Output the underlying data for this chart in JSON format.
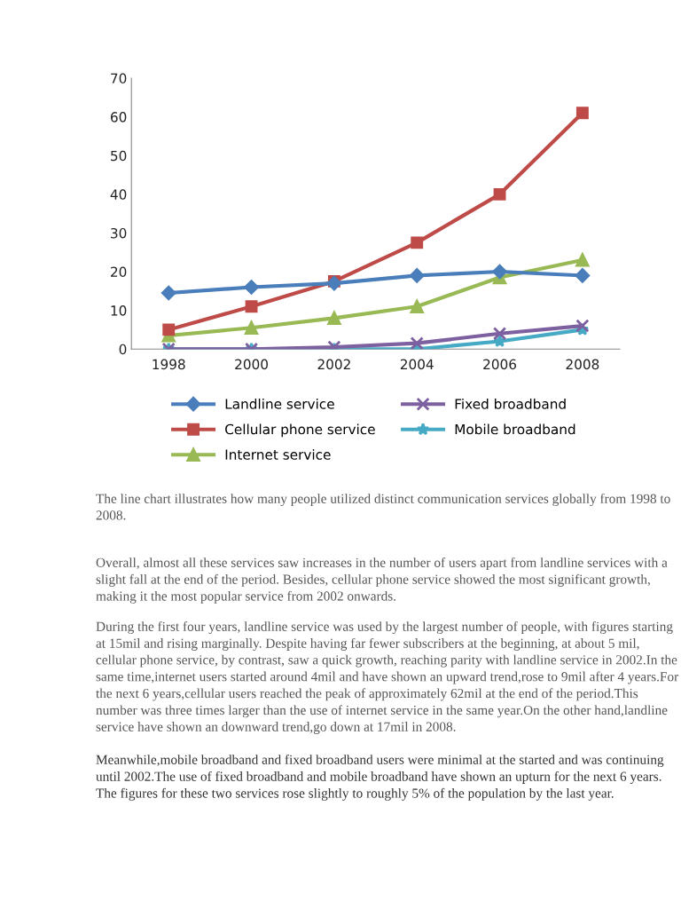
{
  "chart_data": {
    "type": "line",
    "categories": [
      "1998",
      "2000",
      "2002",
      "2004",
      "2006",
      "2008"
    ],
    "series": [
      {
        "name": "Landline service",
        "color": "#4a7ebb",
        "marker": "diamond",
        "values": [
          14.5,
          16,
          17,
          19,
          20,
          19
        ]
      },
      {
        "name": "Cellular phone service",
        "color": "#be4b48",
        "marker": "square",
        "values": [
          5,
          11,
          17.5,
          27.5,
          40,
          61
        ]
      },
      {
        "name": "Internet service",
        "color": "#98b954",
        "marker": "triangle",
        "values": [
          3.5,
          5.5,
          8,
          11,
          18.5,
          23
        ]
      },
      {
        "name": "Fixed broadband",
        "color": "#7d60a0",
        "marker": "cross",
        "values": [
          0,
          0,
          0.5,
          1.5,
          4,
          6
        ]
      },
      {
        "name": "Mobile broadband",
        "color": "#46aac5",
        "marker": "star",
        "values": [
          0,
          0,
          0,
          0,
          2,
          5
        ]
      }
    ],
    "ylim": [
      0,
      70
    ],
    "yticks": [
      0,
      10,
      20,
      30,
      40,
      50,
      60,
      70
    ],
    "grid": false,
    "legend": "bottom",
    "line_style": "solid",
    "annotations": [
      "The line chart illustrates how many people utilized distinct communication services globally from 1998 to 2008.",
      "Overall, almost all these services saw increases in the number of users apart from landline services with a slight fall at the end of the period. Besides, cellular phone service showed the most significant growth, making it the most popular service from 2002 onwards.",
      "During the first four years, landline service was used by the largest number of people, with figures starting at 15mil and rising marginally. Despite having far fewer subscribers at the beginning, at about 5 mil, cellular phone service, by contrast, saw a quick growth, reaching parity with landline service in 2002.In the same time,internet users started around 4mil and have shown an upward trend,rose to 9mil after 4 years.For the next 6 years,cellular users reached the peak of approximately 62mil at the end of the period.This number was three times larger than the use of internet service in the same year.On the other hand,landline service have shown an downward trend,go down at 17mil in 2008.",
      "Meanwhile,mobile broadband and fixed broadband users were minimal at the started and was continuing until 2002.The use of fixed broadband and mobile broadband have shown an upturn for the next 6 years. The figures for these two services rose slightly to roughly 5% of the population by the last year."
    ]
  }
}
